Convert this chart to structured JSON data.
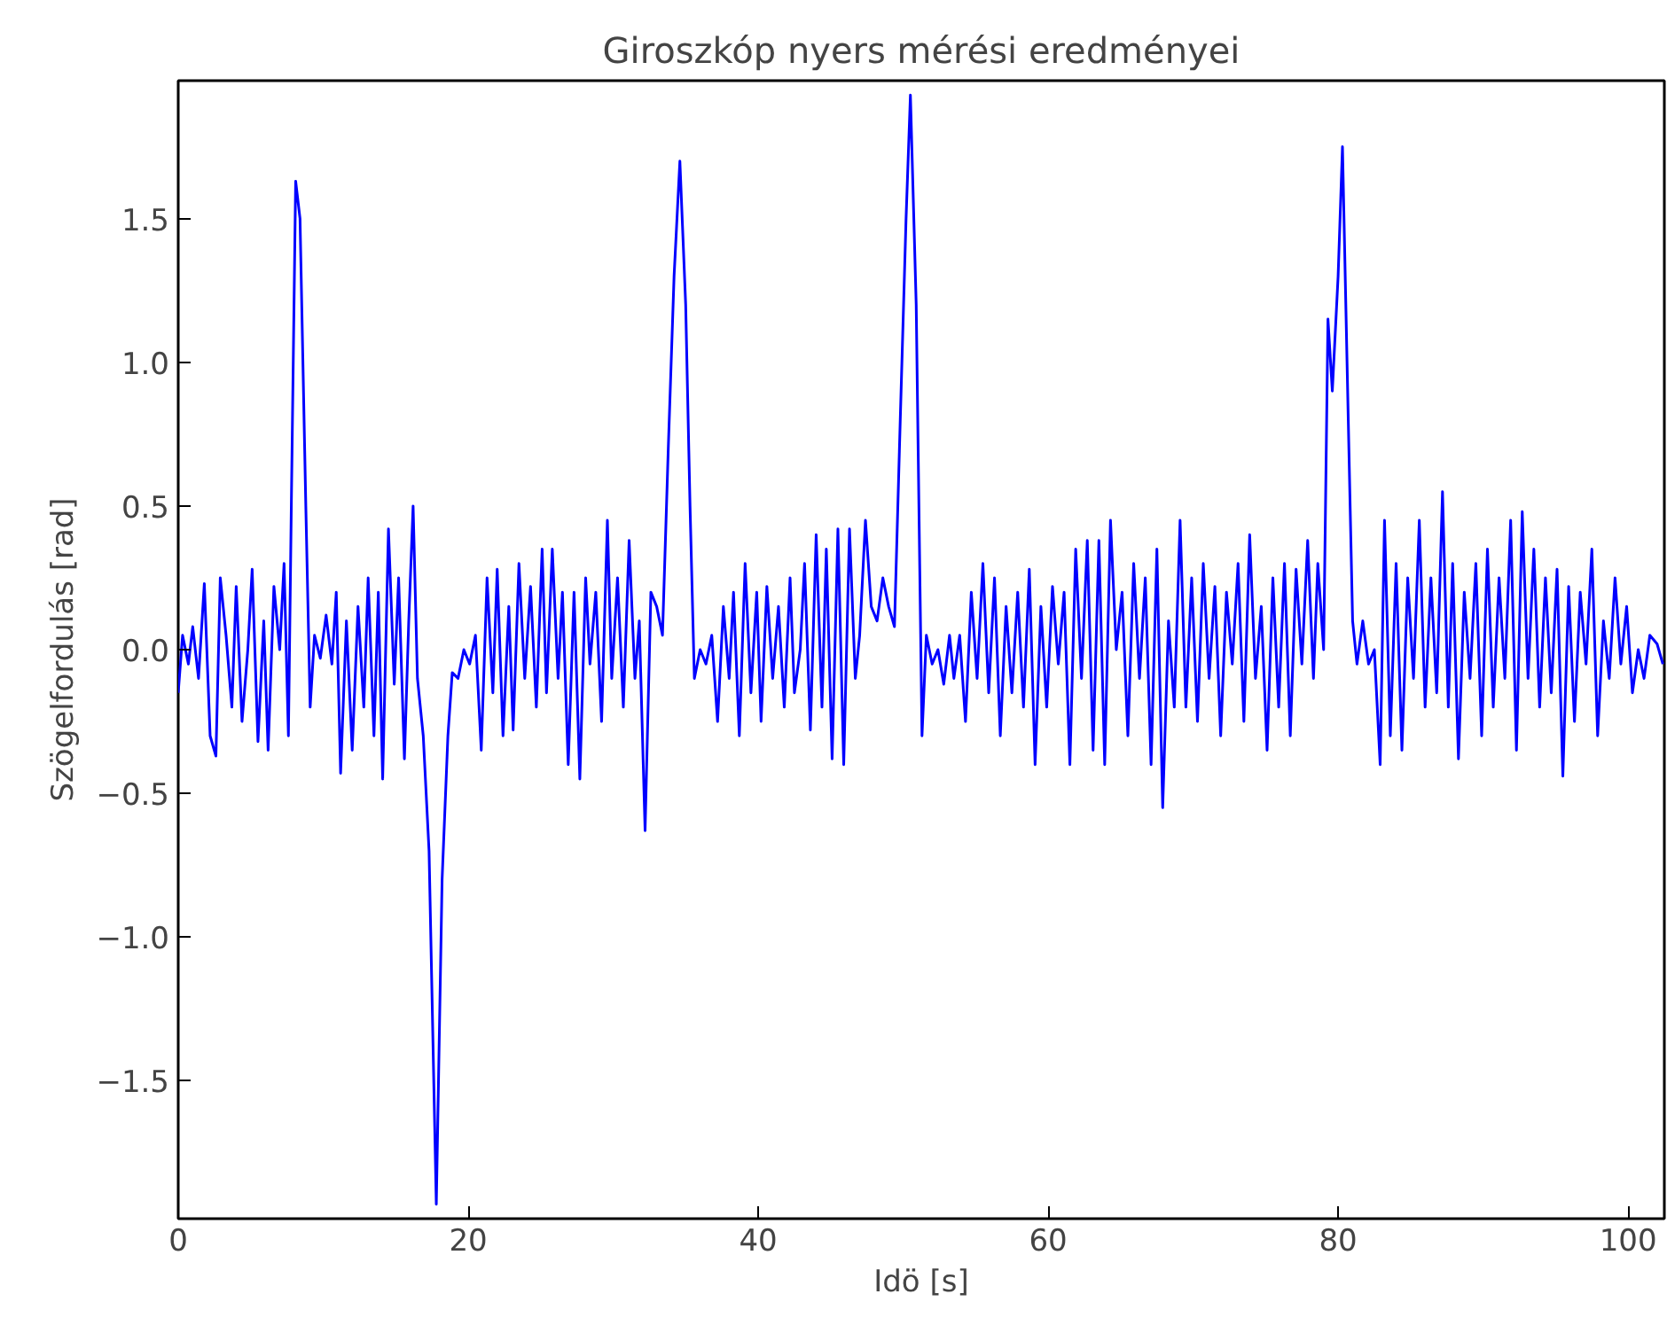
{
  "chart_data": {
    "type": "line",
    "title": "Giroszkóp nyers mérési eredményei",
    "xlabel": "Idö [s]",
    "ylabel": "Szögelfordulás [rad]",
    "x": [
      0,
      0.3,
      0.7,
      1.0,
      1.4,
      1.8,
      2.2,
      2.6,
      2.9,
      3.3,
      3.7,
      4.0,
      4.4,
      4.8,
      5.1,
      5.5,
      5.9,
      6.2,
      6.6,
      7.0,
      7.3,
      7.6,
      7.8,
      8.1,
      8.4,
      8.8,
      9.1,
      9.4,
      9.8,
      10.2,
      10.6,
      10.9,
      11.2,
      11.6,
      12.0,
      12.4,
      12.8,
      13.1,
      13.5,
      13.8,
      14.1,
      14.5,
      14.9,
      15.2,
      15.6,
      15.9,
      16.2,
      16.5,
      16.9,
      17.3,
      17.8,
      18.2,
      18.6,
      18.9,
      19.3,
      19.7,
      20.1,
      20.5,
      20.9,
      21.3,
      21.7,
      22.0,
      22.4,
      22.8,
      23.1,
      23.5,
      23.9,
      24.3,
      24.7,
      25.1,
      25.4,
      25.8,
      26.2,
      26.5,
      26.9,
      27.3,
      27.7,
      28.1,
      28.4,
      28.8,
      29.2,
      29.6,
      29.9,
      30.3,
      30.7,
      31.1,
      31.5,
      31.8,
      32.2,
      32.6,
      33.0,
      33.4,
      33.8,
      34.2,
      34.6,
      35.0,
      35.3,
      35.6,
      36.0,
      36.4,
      36.8,
      37.2,
      37.6,
      38.0,
      38.3,
      38.7,
      39.1,
      39.5,
      39.9,
      40.2,
      40.6,
      41.0,
      41.4,
      41.8,
      42.2,
      42.5,
      42.9,
      43.2,
      43.6,
      44.0,
      44.4,
      44.7,
      45.1,
      45.5,
      45.9,
      46.3,
      46.7,
      47.0,
      47.4,
      47.8,
      48.2,
      48.6,
      49.0,
      49.4,
      49.8,
      50.2,
      50.5,
      50.9,
      51.3,
      51.6,
      52.0,
      52.4,
      52.8,
      53.2,
      53.5,
      53.9,
      54.3,
      54.7,
      55.1,
      55.5,
      55.9,
      56.3,
      56.7,
      57.1,
      57.5,
      57.9,
      58.3,
      58.7,
      59.1,
      59.5,
      59.9,
      60.3,
      60.7,
      61.1,
      61.5,
      61.9,
      62.3,
      62.7,
      63.1,
      63.5,
      63.9,
      64.3,
      64.7,
      65.1,
      65.5,
      65.9,
      66.3,
      66.7,
      67.1,
      67.5,
      67.9,
      68.3,
      68.7,
      69.1,
      69.5,
      69.9,
      70.3,
      70.7,
      71.1,
      71.5,
      71.9,
      72.3,
      72.7,
      73.1,
      73.5,
      73.9,
      74.3,
      74.7,
      75.1,
      75.5,
      75.9,
      76.3,
      76.7,
      77.1,
      77.5,
      77.9,
      78.3,
      78.6,
      79.0,
      79.3,
      79.6,
      80.0,
      80.3,
      80.7,
      81.0,
      81.3,
      81.7,
      82.1,
      82.5,
      82.9,
      83.2,
      83.6,
      84.0,
      84.4,
      84.8,
      85.2,
      85.6,
      86.0,
      86.4,
      86.8,
      87.2,
      87.6,
      87.9,
      88.3,
      88.7,
      89.1,
      89.5,
      89.9,
      90.3,
      90.7,
      91.1,
      91.5,
      91.9,
      92.3,
      92.7,
      93.1,
      93.5,
      93.9,
      94.3,
      94.7,
      95.1,
      95.5,
      95.9,
      96.3,
      96.7,
      97.1,
      97.5,
      97.9,
      98.3,
      98.7,
      99.1,
      99.5,
      99.9,
      100.3,
      100.7,
      101.1,
      101.5,
      102.0,
      102.4
    ],
    "series": [
      {
        "color": "#0000ff",
        "values": [
          -0.15,
          0.05,
          -0.05,
          0.08,
          -0.1,
          0.23,
          -0.3,
          -0.37,
          0.25,
          0.05,
          -0.2,
          0.22,
          -0.25,
          0.0,
          0.28,
          -0.32,
          0.1,
          -0.35,
          0.22,
          0.0,
          0.3,
          -0.3,
          0.5,
          1.63,
          1.5,
          0.5,
          -0.2,
          0.05,
          -0.03,
          0.12,
          -0.05,
          0.2,
          -0.43,
          0.1,
          -0.35,
          0.15,
          -0.2,
          0.25,
          -0.3,
          0.2,
          -0.45,
          0.42,
          -0.12,
          0.25,
          -0.38,
          0.1,
          0.5,
          -0.1,
          -0.3,
          -0.7,
          -1.93,
          -0.8,
          -0.3,
          -0.08,
          -0.1,
          0.0,
          -0.05,
          0.05,
          -0.35,
          0.25,
          -0.15,
          0.28,
          -0.3,
          0.15,
          -0.28,
          0.3,
          -0.1,
          0.22,
          -0.2,
          0.35,
          -0.15,
          0.35,
          -0.1,
          0.2,
          -0.4,
          0.2,
          -0.45,
          0.25,
          -0.05,
          0.2,
          -0.25,
          0.45,
          -0.1,
          0.25,
          -0.2,
          0.38,
          -0.1,
          0.1,
          -0.63,
          0.2,
          0.15,
          0.05,
          0.7,
          1.3,
          1.7,
          1.2,
          0.5,
          -0.1,
          0.0,
          -0.05,
          0.05,
          -0.25,
          0.15,
          -0.1,
          0.2,
          -0.3,
          0.3,
          -0.15,
          0.2,
          -0.25,
          0.22,
          -0.1,
          0.15,
          -0.2,
          0.25,
          -0.15,
          0.0,
          0.3,
          -0.28,
          0.4,
          -0.2,
          0.35,
          -0.38,
          0.42,
          -0.4,
          0.42,
          -0.1,
          0.05,
          0.45,
          0.15,
          0.1,
          0.25,
          0.15,
          0.08,
          0.8,
          1.5,
          1.93,
          1.2,
          -0.3,
          0.05,
          -0.05,
          0.0,
          -0.12,
          0.05,
          -0.1,
          0.05,
          -0.25,
          0.2,
          -0.1,
          0.3,
          -0.15,
          0.25,
          -0.3,
          0.15,
          -0.15,
          0.2,
          -0.2,
          0.28,
          -0.4,
          0.15,
          -0.2,
          0.22,
          -0.05,
          0.2,
          -0.4,
          0.35,
          -0.1,
          0.38,
          -0.35,
          0.38,
          -0.4,
          0.45,
          0.0,
          0.2,
          -0.3,
          0.3,
          -0.1,
          0.25,
          -0.4,
          0.35,
          -0.55,
          0.1,
          -0.2,
          0.45,
          -0.2,
          0.25,
          -0.25,
          0.3,
          -0.1,
          0.22,
          -0.3,
          0.2,
          -0.05,
          0.3,
          -0.25,
          0.4,
          -0.1,
          0.15,
          -0.35,
          0.25,
          -0.2,
          0.3,
          -0.3,
          0.28,
          -0.05,
          0.38,
          -0.1,
          0.3,
          0.0,
          1.15,
          0.9,
          1.3,
          1.75,
          0.8,
          0.1,
          -0.05,
          0.1,
          -0.05,
          0.0,
          -0.4,
          0.45,
          -0.3,
          0.3,
          -0.35,
          0.25,
          -0.1,
          0.45,
          -0.2,
          0.25,
          -0.15,
          0.55,
          -0.2,
          0.3,
          -0.38,
          0.2,
          -0.1,
          0.3,
          -0.3,
          0.35,
          -0.2,
          0.25,
          -0.1,
          0.45,
          -0.35,
          0.48,
          -0.1,
          0.35,
          -0.2,
          0.25,
          -0.15,
          0.28,
          -0.44,
          0.22,
          -0.25,
          0.2,
          -0.05,
          0.35,
          -0.3,
          0.1,
          -0.1,
          0.25,
          -0.05,
          0.15,
          -0.15,
          0.0,
          -0.1,
          0.05,
          0.02,
          -0.05
        ]
      }
    ],
    "xlim": [
      0,
      102.5
    ],
    "ylim": [
      -1.98,
      1.98
    ],
    "xticks": [
      0,
      20,
      40,
      60,
      80,
      100
    ],
    "yticks": [
      {
        "value": -1.5,
        "label": "−1.5"
      },
      {
        "value": -1.0,
        "label": "−1.0"
      },
      {
        "value": -0.5,
        "label": "−0.5"
      },
      {
        "value": 0,
        "label": "0.0"
      },
      {
        "value": 0.5,
        "label": "0.5"
      },
      {
        "value": 1.0,
        "label": "1.0"
      },
      {
        "value": 1.5,
        "label": "1.5"
      }
    ],
    "grid": false,
    "line_style": "solid"
  }
}
